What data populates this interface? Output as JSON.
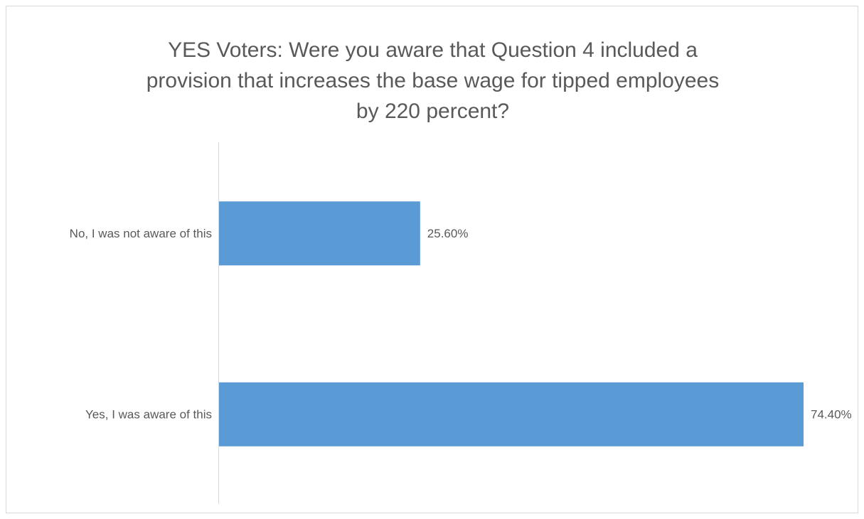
{
  "chart_data": {
    "type": "bar",
    "orientation": "horizontal",
    "title_lines": [
      "YES Voters: Were you aware that Question 4 included a",
      "provision that increases the base wage for tipped employees",
      "by 220 percent?"
    ],
    "categories": [
      "No, I was not aware of this",
      "Yes, I was aware of this"
    ],
    "values": [
      25.6,
      74.4
    ],
    "data_labels": [
      "25.60%",
      "74.40%"
    ],
    "xlim": [
      0,
      74.4
    ],
    "grid": false,
    "legend": "none",
    "colors": {
      "bar": "#5b9bd5",
      "axis": "#d9d9d9",
      "text": "#595959"
    }
  }
}
